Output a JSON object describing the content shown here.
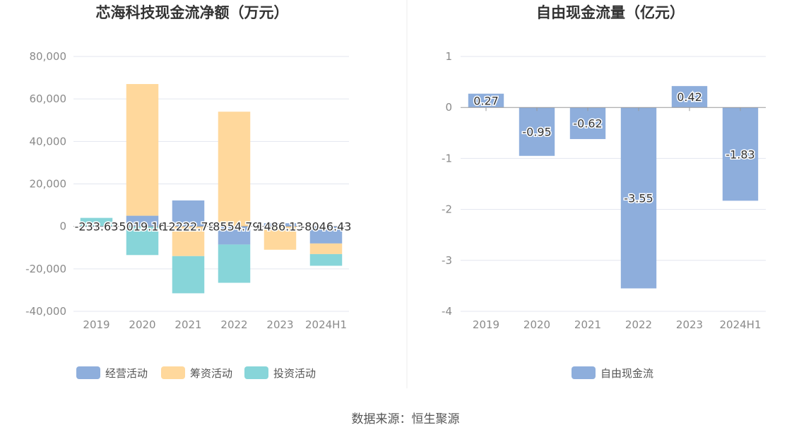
{
  "source_label": "数据来源：恒生聚源",
  "colors": {
    "operating": "#8eaedc",
    "financing": "#ffd89c",
    "investing": "#87d5d9",
    "fcf": "#8eaedc",
    "grid": "#e3e6ef",
    "axis": "#999999"
  },
  "chart_data": [
    {
      "type": "bar",
      "stacked": true,
      "title": "芯海科技现金流净额（万元）",
      "categories": [
        "2019",
        "2020",
        "2021",
        "2022",
        "2023",
        "2024H1"
      ],
      "ylim": [
        -40000,
        80000
      ],
      "yticks": [
        -40000,
        -20000,
        0,
        20000,
        40000,
        60000,
        80000
      ],
      "ytick_labels": [
        "-40,000",
        "-20,000",
        "0",
        "20,000",
        "40,000",
        "60,000",
        "80,000"
      ],
      "grid": true,
      "legend_position": "bottom",
      "series": [
        {
          "name": "经营活动",
          "color_key": "operating",
          "values": [
            -233.63,
            5019.16,
            12222.78,
            -8554.79,
            1486.13,
            -8046.43
          ]
        },
        {
          "name": "筹资活动",
          "color_key": "financing",
          "values": [
            0,
            62000,
            -14000,
            54000,
            -11000,
            -5000
          ]
        },
        {
          "name": "投资活动",
          "color_key": "investing",
          "values": [
            4000,
            -13500,
            -17500,
            -18000,
            0,
            -5500
          ]
        }
      ],
      "data_labels": [
        "-233.63",
        "5019.16",
        "12222.78",
        "-8554.79",
        "1486.13",
        "-8046.43"
      ]
    },
    {
      "type": "bar",
      "title": "自由现金流量（亿元）",
      "categories": [
        "2019",
        "2020",
        "2021",
        "2022",
        "2023",
        "2024H1"
      ],
      "ylim": [
        -4,
        1
      ],
      "yticks": [
        -4,
        -3,
        -2,
        -1,
        0,
        1
      ],
      "ytick_labels": [
        "-4",
        "-3",
        "-2",
        "-1",
        "0",
        "1"
      ],
      "grid": true,
      "legend_position": "bottom",
      "series": [
        {
          "name": "自由现金流",
          "color_key": "fcf",
          "values": [
            0.27,
            -0.95,
            -0.62,
            -3.55,
            0.42,
            -1.83
          ]
        }
      ],
      "data_labels": [
        "0.27",
        "-0.95",
        "-0.62",
        "-3.55",
        "0.42",
        "-1.83"
      ]
    }
  ]
}
